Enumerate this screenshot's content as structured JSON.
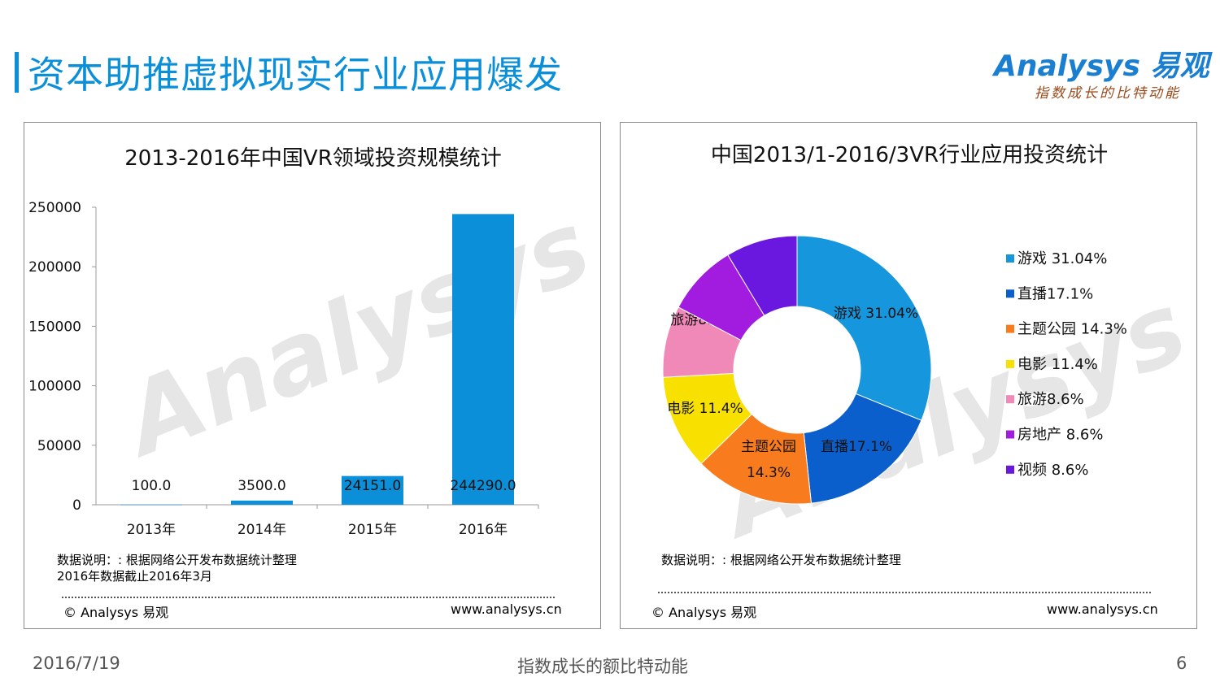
{
  "header": {
    "title": "资本助推虚拟现实行业应用爆发",
    "logo_text": "Analysys 易观",
    "logo_slogan": "指数成长的比特动能"
  },
  "watermark": "Analysys",
  "left_panel": {
    "note_line1": "数据说明：: 根据网络公开发布数据统计整理",
    "note_line2": "2016年数据截止2016年3月",
    "copyright": "© Analysys 易观",
    "website": "www.analysys.cn"
  },
  "right_panel": {
    "note_line1": "数据说明：: 根据网络公开发布数据统计整理",
    "copyright": "© Analysys 易观",
    "website": "www.analysys.cn"
  },
  "footer": {
    "date": "2016/7/19",
    "slogan": "指数成长的额比特动能",
    "page_number": "6"
  },
  "colors": {
    "accent": "#0a8fd8",
    "bar": "#0a8fd8"
  },
  "chart_data": [
    {
      "type": "bar",
      "title": "2013-2016年中国VR领域投资规模统计",
      "categories": [
        "2013年",
        "2014年",
        "2015年",
        "2016年"
      ],
      "values": [
        100.0,
        3500.0,
        24151.0,
        244290.0
      ],
      "data_labels": [
        "100.0",
        "3500.0",
        "24151.0",
        "244290.0"
      ],
      "yticks": [
        "0",
        "50000",
        "100000",
        "150000",
        "200000",
        "250000"
      ],
      "ylim": [
        0,
        250000
      ],
      "xlabel": "",
      "ylabel": "",
      "grid": false,
      "color": "#0a8fd8"
    },
    {
      "type": "pie",
      "title": "中国2013/1-2016/3VR行业应用投资统计",
      "donut": true,
      "slices": [
        {
          "label": "游戏",
          "value": 31.04,
          "slice_label": "游戏 31.04%",
          "legend": "游戏 31.04%",
          "color": "#1696dc"
        },
        {
          "label": "直播",
          "value": 17.1,
          "slice_label": "直播17.1%",
          "legend": "直播17.1%",
          "color": "#0a5fcc"
        },
        {
          "label": "主题公园",
          "value": 14.3,
          "slice_label": "主题公园\n14.3%",
          "legend": "主题公园 14.3%",
          "color": "#f87c1e"
        },
        {
          "label": "电影",
          "value": 11.4,
          "slice_label": "电影 11.4%",
          "legend": "电影 11.4%",
          "color": "#f8e000"
        },
        {
          "label": "旅游",
          "value": 8.6,
          "slice_label": "旅游8.6%",
          "legend": "旅游8.6%",
          "color": "#f088b8"
        },
        {
          "label": "房地产",
          "value": 8.6,
          "slice_label": "",
          "legend": "房地产 8.6%",
          "color": "#a21ce0"
        },
        {
          "label": "视频",
          "value": 8.6,
          "slice_label": "",
          "legend": "视频 8.6%",
          "color": "#6a18e0"
        }
      ],
      "legend_position": "right"
    }
  ]
}
